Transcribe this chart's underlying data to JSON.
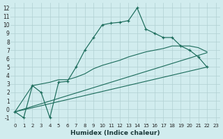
{
  "bg_color": "#d1ecee",
  "grid_color": "#b0d0d2",
  "line_color": "#1a6b5a",
  "x_label": "Humidex (Indice chaleur)",
  "xlim": [
    -0.5,
    23.5
  ],
  "ylim": [
    -1.6,
    12.6
  ],
  "xticks": [
    0,
    1,
    2,
    3,
    4,
    5,
    6,
    7,
    8,
    9,
    10,
    11,
    12,
    13,
    14,
    15,
    16,
    17,
    18,
    19,
    20,
    21,
    22,
    23
  ],
  "yticks": [
    -1,
    0,
    1,
    2,
    3,
    4,
    5,
    6,
    7,
    8,
    9,
    10,
    11,
    12
  ],
  "main_x": [
    0,
    1,
    2,
    3,
    4,
    5,
    6,
    7,
    8,
    9,
    10,
    11,
    12,
    13,
    14,
    15,
    16,
    17,
    18,
    19,
    20,
    21,
    22
  ],
  "main_y": [
    -0.3,
    -1.0,
    2.8,
    2.0,
    -1.0,
    3.2,
    3.3,
    5.0,
    7.0,
    8.5,
    10.0,
    10.2,
    10.3,
    10.5,
    12.0,
    9.5,
    9.0,
    8.5,
    8.5,
    7.5,
    7.0,
    6.2,
    5.0
  ],
  "line2_x": [
    0,
    2,
    3,
    4,
    5,
    6,
    7,
    8,
    9,
    10,
    11,
    12,
    13,
    14,
    15,
    16,
    17,
    18,
    19,
    20,
    21,
    22
  ],
  "line2_y": [
    -0.3,
    2.8,
    3.0,
    3.2,
    3.5,
    3.5,
    3.8,
    4.2,
    4.8,
    5.2,
    5.5,
    5.8,
    6.2,
    6.5,
    6.8,
    7.0,
    7.2,
    7.5,
    7.5,
    7.5,
    7.3,
    6.8
  ],
  "line3_x": [
    0,
    22
  ],
  "line3_y": [
    -0.3,
    6.7
  ],
  "line4_x": [
    0,
    22
  ],
  "line4_y": [
    -0.3,
    5.0
  ]
}
